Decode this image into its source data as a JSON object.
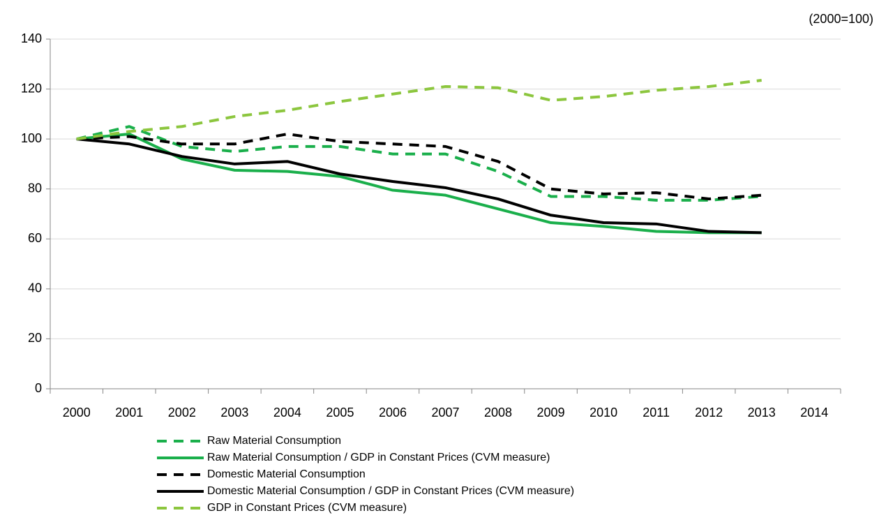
{
  "chart_data": {
    "type": "line",
    "annotation": "(2000=100)",
    "categories": [
      "2000",
      "2001",
      "2002",
      "2003",
      "2004",
      "2005",
      "2006",
      "2007",
      "2008",
      "2009",
      "2010",
      "2011",
      "2012",
      "2013",
      "2014"
    ],
    "ylim": [
      0,
      140
    ],
    "yticks": [
      0,
      20,
      40,
      60,
      80,
      100,
      120,
      140
    ],
    "grid": true,
    "legend": "bottom",
    "series": [
      {
        "name": "Raw Material Consumption",
        "color": "#1aaf4b",
        "dashed": true,
        "values": [
          100,
          105,
          97,
          95,
          97,
          97,
          94,
          94,
          87,
          77,
          77,
          75.5,
          75.5,
          77,
          null
        ]
      },
      {
        "name": "Raw Material Consumption / GDP in Constant Prices (CVM measure)",
        "color": "#1aaf4b",
        "dashed": false,
        "values": [
          100,
          102,
          92,
          87.5,
          87,
          85,
          79.5,
          77.5,
          72,
          66.5,
          65,
          63,
          62.5,
          62.5,
          null
        ]
      },
      {
        "name": "Domestic Material Consumption",
        "color": "#000000",
        "dashed": true,
        "values": [
          100,
          101,
          98,
          98,
          102,
          99,
          98,
          97,
          91,
          80,
          78,
          78.5,
          76,
          77.5,
          null
        ]
      },
      {
        "name": "Domestic Material Consumption / GDP in Constant Prices (CVM measure)",
        "color": "#000000",
        "dashed": false,
        "values": [
          100,
          98,
          93,
          90,
          91,
          86,
          83,
          80.5,
          76,
          69.5,
          66.5,
          66,
          63,
          62.5,
          null
        ]
      },
      {
        "name": "GDP in Constant Prices (CVM measure)",
        "color": "#8cc63e",
        "dashed": true,
        "values": [
          100,
          103,
          105,
          109,
          111.5,
          115,
          118,
          121,
          120.5,
          115.5,
          117,
          119.5,
          121,
          123.5,
          null
        ]
      }
    ]
  }
}
